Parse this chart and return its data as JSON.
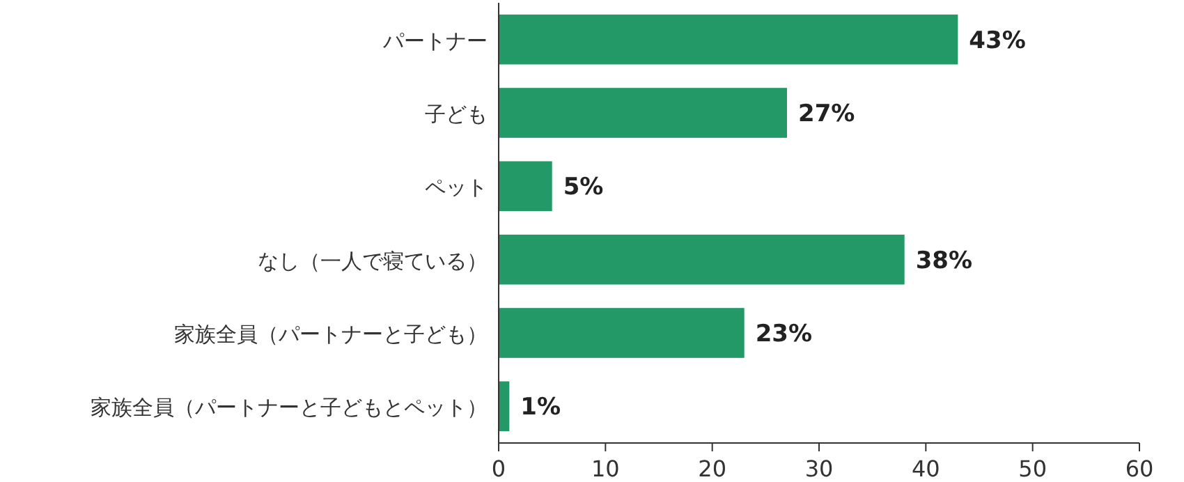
{
  "chart_data": {
    "type": "bar",
    "orientation": "horizontal",
    "categories": [
      "パートナー",
      "子ども",
      "ペット",
      "なし（一人で寝ている）",
      "家族全員（パートナーと子ども）",
      "家族全員（パートナーと子どもとペット）"
    ],
    "values": [
      43,
      27,
      5,
      38,
      23,
      1
    ],
    "value_labels": [
      "43%",
      "27%",
      "5%",
      "38%",
      "23%",
      "1%"
    ],
    "color": "#229966",
    "xlim": [
      0,
      60
    ],
    "xticks": [
      0,
      10,
      20,
      30,
      40,
      50,
      60
    ]
  }
}
